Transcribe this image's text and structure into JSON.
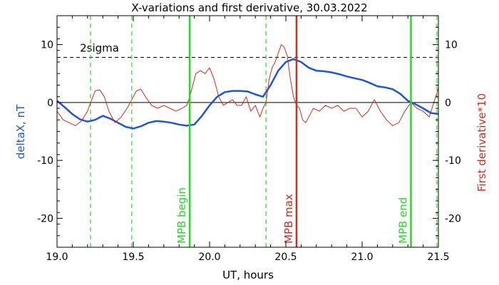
{
  "chart_data": {
    "type": "line",
    "title": "X-variations and first derivative, 30.03.2022",
    "xlabel": "UT, hours",
    "ylabel_left": "deltaX, nT",
    "ylabel_right": "First derivative*10",
    "xlim": [
      19.0,
      21.5
    ],
    "ylim": [
      -25,
      15
    ],
    "x_ticks": [
      19.0,
      19.5,
      20.0,
      20.5,
      21.0,
      21.5
    ],
    "x_tick_labels": [
      "19.0",
      "19.5",
      "20.0",
      "20.5",
      "21.0",
      "21.5"
    ],
    "y_ticks": [
      10,
      0,
      -10,
      -20
    ],
    "y_tick_labels": [
      "10",
      "0",
      "-10",
      "-20"
    ],
    "threshold": {
      "label": "2sigma",
      "value": 7.8
    },
    "zero_line": 0,
    "colors": {
      "deltaX": "#1f55d6",
      "derivative": "#d62a1a",
      "mpb_line": "#22dd22",
      "mpb_max_line": "#d62a1a",
      "axes": "#000000"
    },
    "vertical_markers": [
      {
        "label": "MPB begin",
        "x": 19.87,
        "style": "solid",
        "color": "#22dd22"
      },
      {
        "label": "MPB max",
        "x": 20.57,
        "style": "solid",
        "color": "#d62a1a"
      },
      {
        "label": "MPB end",
        "x": 21.32,
        "style": "solid",
        "color": "#22dd22"
      }
    ],
    "dashed_markers": [
      19.22,
      19.49,
      20.37,
      21.49
    ],
    "series": [
      {
        "name": "deltaX, nT",
        "axis": "left",
        "x": [
          19.0,
          19.05,
          19.1,
          19.15,
          19.2,
          19.25,
          19.3,
          19.35,
          19.4,
          19.45,
          19.5,
          19.55,
          19.6,
          19.65,
          19.7,
          19.75,
          19.8,
          19.85,
          19.9,
          19.95,
          20.0,
          20.05,
          20.1,
          20.15,
          20.2,
          20.25,
          20.3,
          20.35,
          20.4,
          20.45,
          20.5,
          20.55,
          20.6,
          20.65,
          20.7,
          20.75,
          20.8,
          20.85,
          20.9,
          20.95,
          21.0,
          21.05,
          21.1,
          21.15,
          21.2,
          21.25,
          21.3,
          21.35,
          21.4,
          21.45,
          21.5
        ],
        "y": [
          0.3,
          -0.8,
          -2.0,
          -2.9,
          -3.3,
          -3.0,
          -2.3,
          -2.8,
          -3.5,
          -4.2,
          -4.5,
          -4.1,
          -3.5,
          -3.2,
          -3.3,
          -3.5,
          -3.8,
          -4.0,
          -3.8,
          -2.3,
          -0.5,
          1.0,
          1.8,
          2.0,
          2.0,
          1.9,
          1.4,
          1.0,
          3.0,
          5.5,
          7.0,
          7.5,
          7.0,
          6.0,
          5.5,
          5.4,
          5.2,
          4.9,
          4.5,
          4.2,
          3.9,
          3.4,
          2.8,
          2.6,
          2.3,
          1.5,
          0.3,
          -0.3,
          -1.0,
          -1.8,
          -2.0
        ]
      },
      {
        "name": "First derivative*10",
        "axis": "right",
        "x": [
          19.0,
          19.04,
          19.08,
          19.12,
          19.16,
          19.2,
          19.22,
          19.25,
          19.28,
          19.31,
          19.34,
          19.38,
          19.42,
          19.46,
          19.49,
          19.52,
          19.55,
          19.58,
          19.62,
          19.66,
          19.7,
          19.74,
          19.78,
          19.82,
          19.85,
          19.87,
          19.89,
          19.91,
          19.94,
          19.97,
          20.0,
          20.03,
          20.06,
          20.09,
          20.12,
          20.15,
          20.18,
          20.21,
          20.24,
          20.27,
          20.3,
          20.33,
          20.35,
          20.37,
          20.39,
          20.41,
          20.43,
          20.45,
          20.47,
          20.49,
          20.51,
          20.53,
          20.55,
          20.57,
          20.59,
          20.61,
          20.63,
          20.65,
          20.68,
          20.72,
          20.76,
          20.8,
          20.84,
          20.88,
          20.92,
          20.96,
          21.0,
          21.04,
          21.08,
          21.12,
          21.16,
          21.2,
          21.24,
          21.28,
          21.32,
          21.36,
          21.4,
          21.44,
          21.47,
          21.5
        ],
        "y": [
          -1.5,
          -3.0,
          -3.5,
          -4.0,
          -3.2,
          -1.5,
          0.0,
          2.0,
          2.2,
          1.0,
          -1.5,
          -3.5,
          -2.5,
          -1.0,
          0.5,
          2.0,
          2.3,
          1.0,
          -0.5,
          -1.0,
          -0.5,
          -1.0,
          -1.5,
          -1.0,
          -0.5,
          1.0,
          3.0,
          5.0,
          5.5,
          5.0,
          6.0,
          4.0,
          1.0,
          -0.5,
          0.0,
          0.5,
          -0.5,
          -0.5,
          1.0,
          -1.5,
          -0.5,
          -2.5,
          -1.0,
          0.0,
          4.0,
          6.0,
          7.0,
          8.5,
          10.0,
          9.5,
          8.0,
          4.0,
          1.0,
          -0.5,
          -1.0,
          -3.0,
          -3.5,
          -2.5,
          -1.0,
          -1.5,
          -0.5,
          -1.0,
          -0.5,
          -1.5,
          -1.0,
          -1.0,
          -2.5,
          -1.5,
          0.5,
          -1.5,
          -3.0,
          -4.0,
          -3.5,
          -1.5,
          0.0,
          -1.0,
          -1.5,
          -2.5,
          0.0,
          2.5
        ]
      }
    ]
  }
}
